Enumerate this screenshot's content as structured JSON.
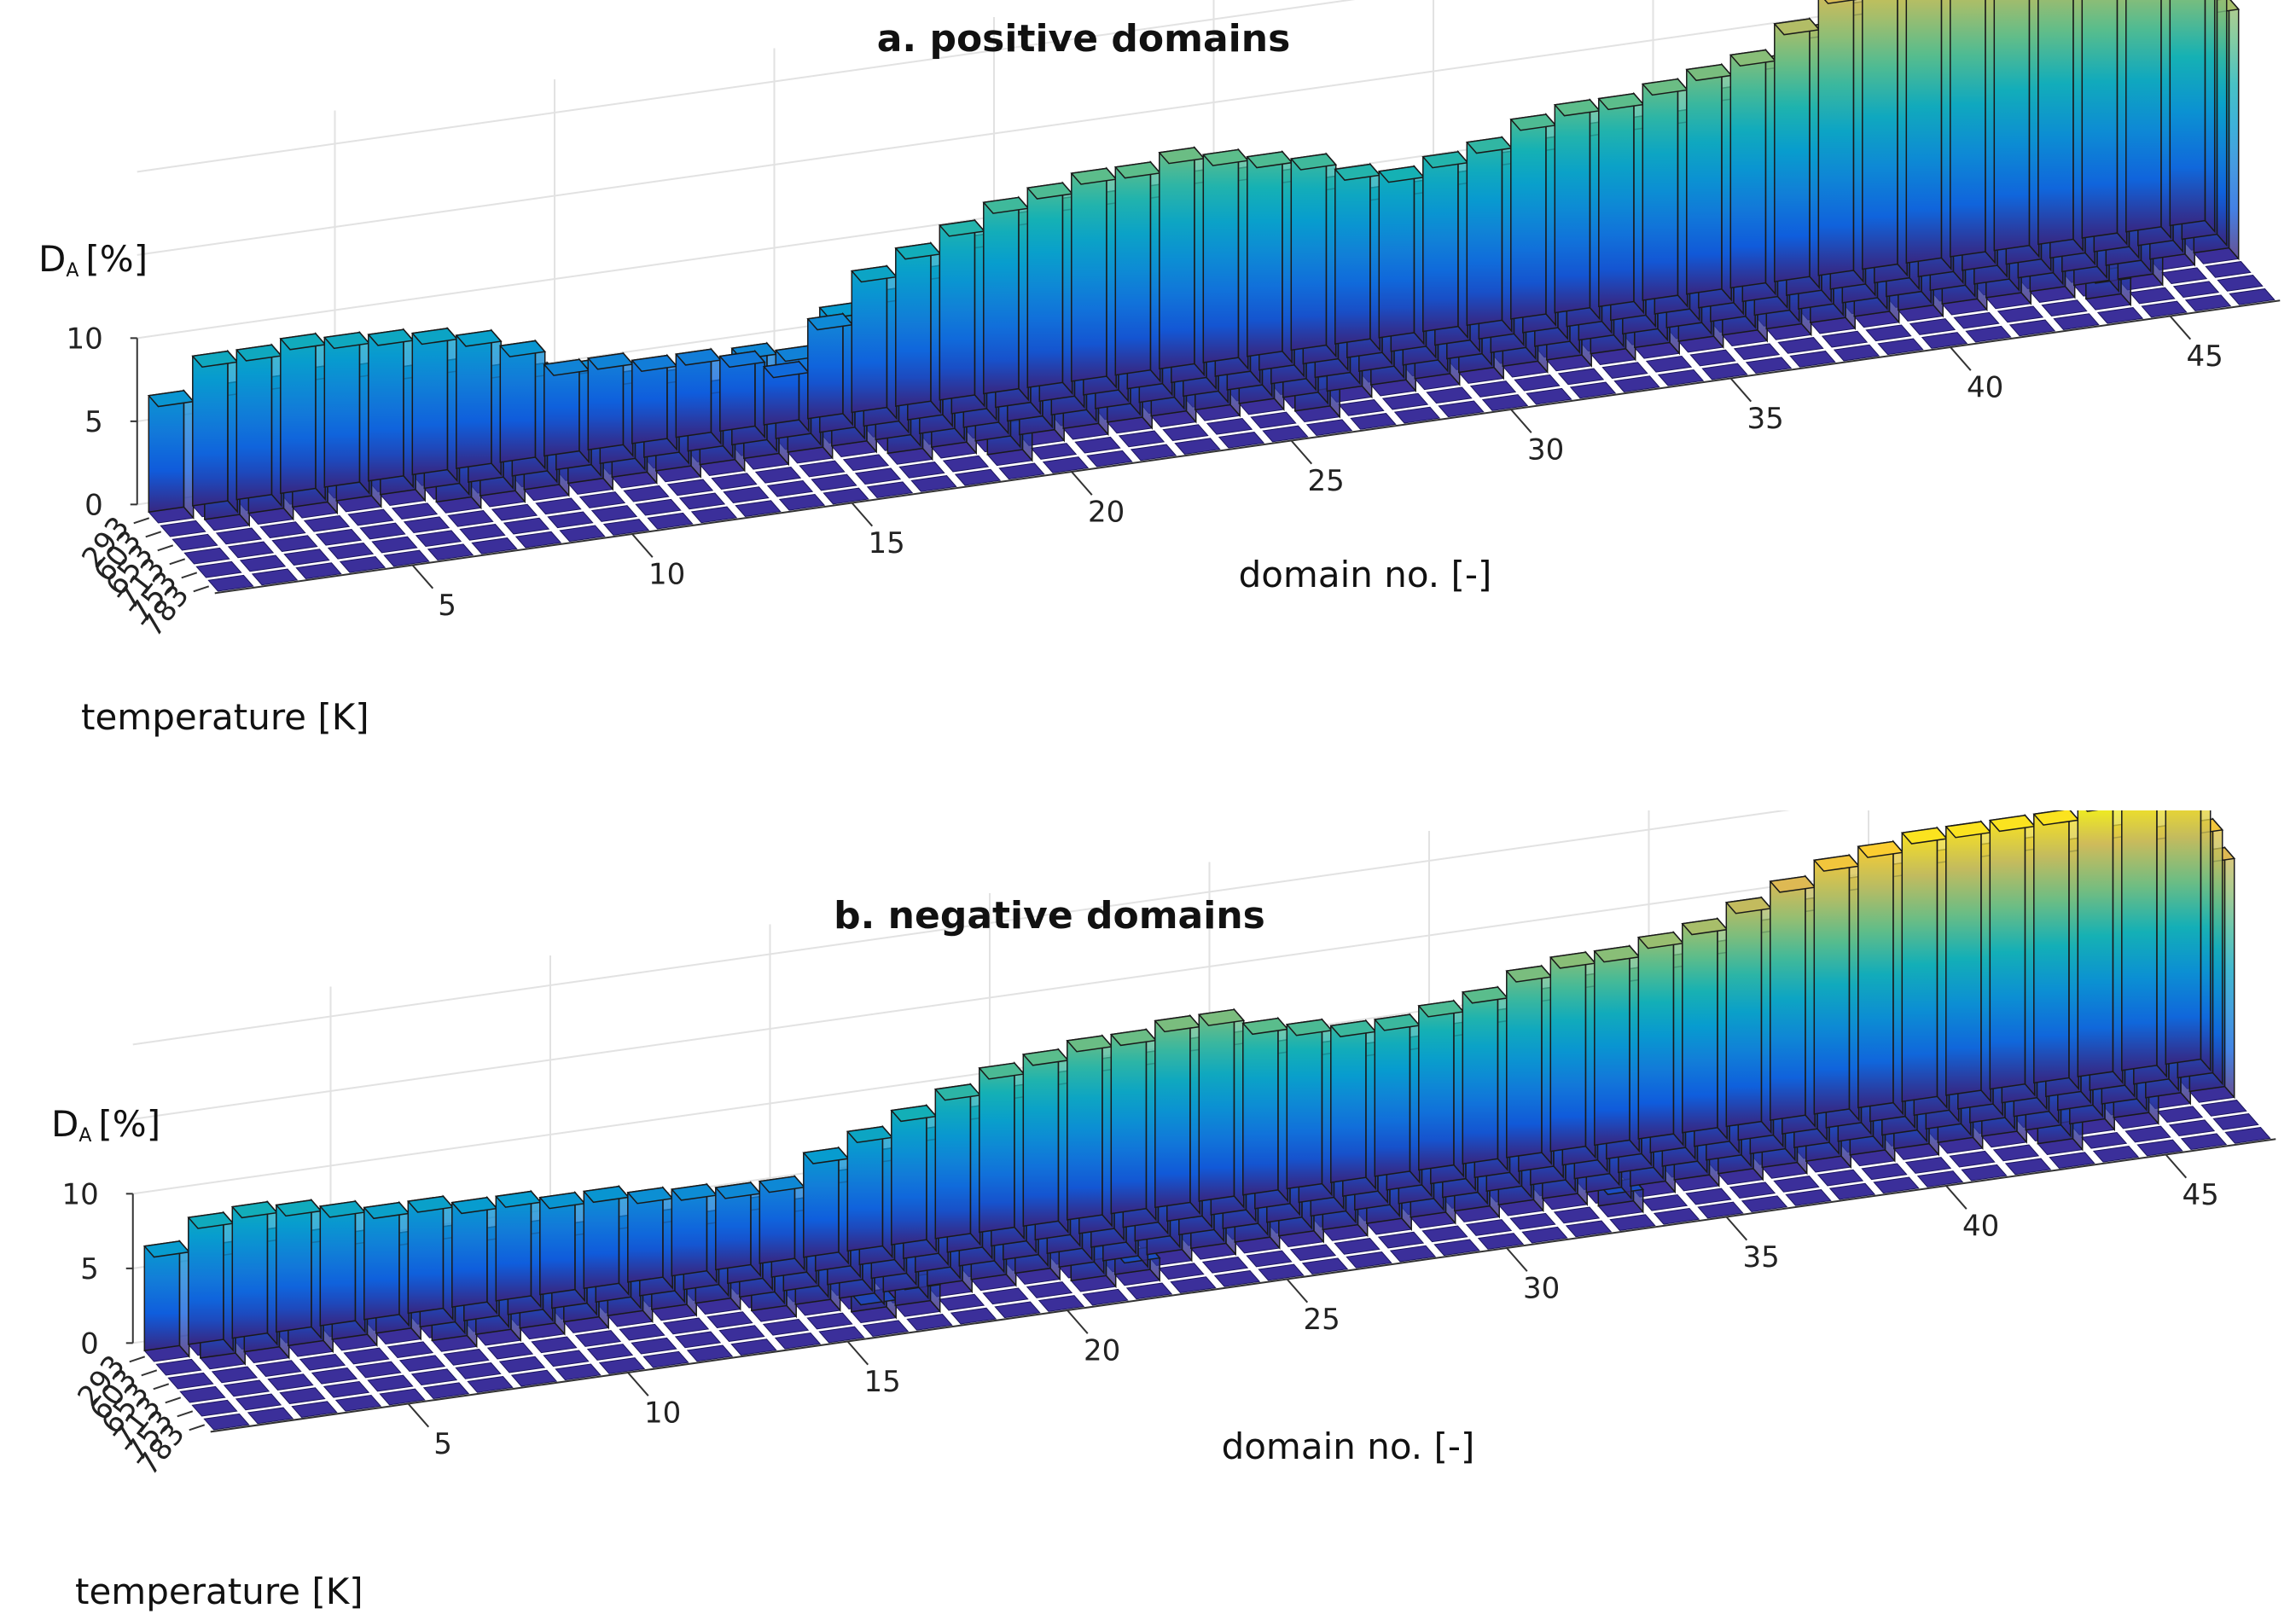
{
  "chart_data": [
    {
      "type": "bar3d",
      "title": "a. positive domains",
      "xlabel": "domain no. [-]",
      "ylabel": "temperature [K]",
      "zlabel_main": "D",
      "zlabel_sub": "A",
      "zlabel_unit": "[%]",
      "x_ticks": [
        "5",
        "10",
        "15",
        "20",
        "25",
        "30",
        "35",
        "40",
        "45"
      ],
      "x_tick_values": [
        5,
        10,
        15,
        20,
        25,
        30,
        35,
        40,
        45
      ],
      "y_ticks": [
        "293",
        "603",
        "653",
        "713",
        "753",
        "783"
      ],
      "z_ticks": [
        "0",
        "5",
        "10"
      ],
      "z_tick_values": [
        0,
        5,
        10
      ],
      "zlim": [
        0,
        10
      ],
      "series": [
        {
          "name": "293",
          "values": [
            7.0,
            9.0,
            9.0,
            9.3,
            9.0,
            8.8,
            8.5,
            8.0,
            7.0,
            5.5,
            5.5,
            5.0,
            5.0,
            4.5,
            3.5,
            6.0,
            8.5,
            9.5,
            10.5,
            11.5,
            12.0,
            12.5,
            12.5,
            13.0,
            12.5,
            12.0,
            11.5,
            10.5,
            10.0,
            10.5,
            11.0,
            12.0,
            12.5,
            12.5,
            13.0,
            13.5,
            14.0,
            15.5,
            17.0,
            18.0,
            18.5,
            18.0,
            19.0,
            19.0,
            18.5,
            18.0,
            20.0
          ]
        },
        {
          "name": "603",
          "values": [
            0,
            8.0,
            8.0,
            8.2,
            8.0,
            7.5,
            7.5,
            6.8,
            6.5,
            6.3,
            5.3,
            5.0,
            4.0,
            5.8,
            5.3,
            7.5,
            8.0,
            9.0,
            10.5,
            11.5,
            12.0,
            12.0,
            12.0,
            12.5,
            12.3,
            11.8,
            11.0,
            10.0,
            10.0,
            10.2,
            11.0,
            11.5,
            12.0,
            12.0,
            12.0,
            13.0,
            14.5,
            16.0,
            17.0,
            18.0,
            17.5,
            17.5,
            18.0,
            18.0,
            18.2,
            17.5,
            16.0
          ]
        },
        {
          "name": "653",
          "values": [
            0,
            0,
            0,
            0,
            0,
            0,
            6.3,
            5.8,
            4.5,
            4.8,
            4.3,
            4.0,
            3.8,
            3.5,
            5.0,
            5.5,
            6.0,
            7.8,
            9.0,
            10.0,
            10.5,
            11.0,
            11.0,
            11.5,
            11.5,
            11.0,
            10.5,
            10.0,
            9.5,
            9.5,
            10.0,
            11.0,
            11.5,
            12.0,
            12.5,
            13.0,
            13.5,
            15.0,
            16.0,
            17.0,
            17.0,
            17.2,
            17.5,
            17.5,
            17.0,
            16.5,
            15.0
          ]
        },
        {
          "name": "713",
          "values": [
            0,
            0,
            0,
            0,
            0,
            0,
            0,
            0,
            0,
            0,
            0,
            0,
            0,
            0,
            0,
            0,
            6.0,
            5.5,
            6.5,
            8.0,
            9.0,
            9.5,
            10.0,
            10.0,
            10.5,
            10.0,
            9.0,
            8.5,
            8.5,
            9.0,
            9.5,
            10.0,
            10.0,
            10.5,
            11.0,
            11.5,
            12.0,
            13.0,
            14.0,
            15.0,
            15.5,
            15.5,
            16.0,
            16.0,
            16.0,
            0,
            0
          ]
        },
        {
          "name": "753",
          "values": [
            0,
            0,
            0,
            0,
            0,
            0,
            0,
            0,
            0,
            0,
            0,
            0,
            0,
            0,
            0,
            0,
            0,
            0,
            2.5,
            0,
            0,
            0,
            0,
            0,
            0,
            1.8,
            0,
            0,
            0,
            0,
            0,
            0,
            0,
            0,
            0,
            0,
            0,
            0,
            0,
            0,
            0,
            0,
            0,
            1.6,
            0,
            0,
            0
          ]
        },
        {
          "name": "783",
          "values": [
            0,
            0,
            0,
            0,
            0,
            0,
            0,
            0,
            0,
            0,
            0,
            0,
            0,
            0,
            0,
            0,
            0,
            0,
            0,
            0,
            0,
            0,
            0,
            0,
            0,
            0,
            0,
            0,
            0,
            0,
            0,
            0,
            0,
            0,
            0,
            0,
            0,
            0,
            0,
            0,
            0,
            0,
            0,
            0,
            0,
            0,
            0
          ]
        }
      ]
    },
    {
      "type": "bar3d",
      "title": "b. negative domains",
      "xlabel": "domain no. [-]",
      "ylabel": "temperature [K]",
      "zlabel_main": "D",
      "zlabel_sub": "A",
      "zlabel_unit": "[%]",
      "x_ticks": [
        "5",
        "10",
        "15",
        "20",
        "25",
        "30",
        "35",
        "40",
        "45"
      ],
      "x_tick_values": [
        5,
        10,
        15,
        20,
        25,
        30,
        35,
        40,
        45
      ],
      "y_ticks": [
        "293",
        "603",
        "653",
        "713",
        "753",
        "783"
      ],
      "z_ticks": [
        "0",
        "5",
        "10"
      ],
      "z_tick_values": [
        0,
        5,
        10
      ],
      "zlim": [
        0,
        10
      ],
      "series": [
        {
          "name": "293",
          "values": [
            7.0,
            8.5,
            8.8,
            8.5,
            8.0,
            7.5,
            7.5,
            7.0,
            7.0,
            6.5,
            6.5,
            6.0,
            5.8,
            5.5,
            5.5,
            7.0,
            8.0,
            9.0,
            10.0,
            11.0,
            11.5,
            12.0,
            12.0,
            12.5,
            12.5,
            11.5,
            11.0,
            10.5,
            10.5,
            11.0,
            11.5,
            12.5,
            13.0,
            13.0,
            13.5,
            14.0,
            15.0,
            16.0,
            17.0,
            17.5,
            18.0,
            18.0,
            18.0,
            18.0,
            18.5,
            18.2,
            18.0
          ]
        },
        {
          "name": "603",
          "values": [
            0,
            7.5,
            8.0,
            7.5,
            7.0,
            6.5,
            6.5,
            6.0,
            6.0,
            5.5,
            5.5,
            5.5,
            5.0,
            5.5,
            5.0,
            6.5,
            7.5,
            8.5,
            9.5,
            10.5,
            11.0,
            11.5,
            11.5,
            12.0,
            12.0,
            11.0,
            10.5,
            10.0,
            10.0,
            10.5,
            11.0,
            12.0,
            12.5,
            12.5,
            13.0,
            13.5,
            14.5,
            15.5,
            16.5,
            17.0,
            17.5,
            17.5,
            17.5,
            17.0,
            17.5,
            17.0,
            17.0
          ]
        },
        {
          "name": "653",
          "values": [
            0,
            0,
            0,
            0,
            0,
            0,
            5.5,
            5.0,
            4.0,
            4.5,
            4.5,
            4.0,
            4.0,
            4.0,
            4.5,
            5.0,
            5.5,
            6.5,
            7.5,
            8.5,
            9.5,
            10.0,
            10.0,
            10.5,
            10.5,
            10.0,
            9.5,
            9.0,
            9.5,
            10.0,
            10.5,
            11.0,
            11.5,
            12.0,
            12.5,
            13.0,
            14.0,
            15.0,
            16.0,
            16.0,
            16.5,
            16.5,
            16.5,
            16.5,
            16.5,
            16.0,
            16.0
          ]
        },
        {
          "name": "713",
          "values": [
            0,
            0,
            0,
            0,
            0,
            0,
            0,
            0,
            0,
            0,
            0,
            0,
            0,
            3.5,
            3.0,
            3.5,
            4.0,
            5.5,
            6.5,
            7.5,
            8.0,
            8.5,
            9.0,
            9.0,
            9.0,
            8.5,
            8.0,
            8.0,
            8.5,
            9.0,
            9.0,
            9.5,
            10.0,
            10.0,
            10.5,
            11.0,
            11.5,
            12.0,
            12.5,
            13.0,
            13.5,
            13.5,
            14.0,
            14.0,
            14.0,
            0,
            0
          ]
        },
        {
          "name": "753",
          "values": [
            0,
            0,
            0,
            0,
            0,
            0,
            0,
            0,
            0,
            0,
            0,
            0,
            0,
            0,
            0,
            1.2,
            1.8,
            0,
            0,
            0,
            2.0,
            1.5,
            0,
            0,
            0,
            0,
            0,
            0,
            0,
            0,
            0,
            0,
            1.5,
            0,
            0,
            0,
            0,
            0,
            0,
            0,
            0,
            0,
            2.0,
            0,
            0,
            0,
            0
          ]
        },
        {
          "name": "783",
          "values": [
            0,
            0,
            0,
            0,
            0,
            0,
            0,
            0,
            0,
            0,
            0,
            0,
            0,
            0,
            0,
            0,
            0,
            0,
            0,
            0,
            0,
            0,
            0,
            0,
            0,
            0,
            0,
            0,
            0,
            0,
            0,
            0,
            0,
            0,
            0,
            0,
            0,
            0,
            0,
            0,
            0,
            0,
            0,
            0,
            0,
            0,
            0
          ]
        }
      ]
    }
  ]
}
